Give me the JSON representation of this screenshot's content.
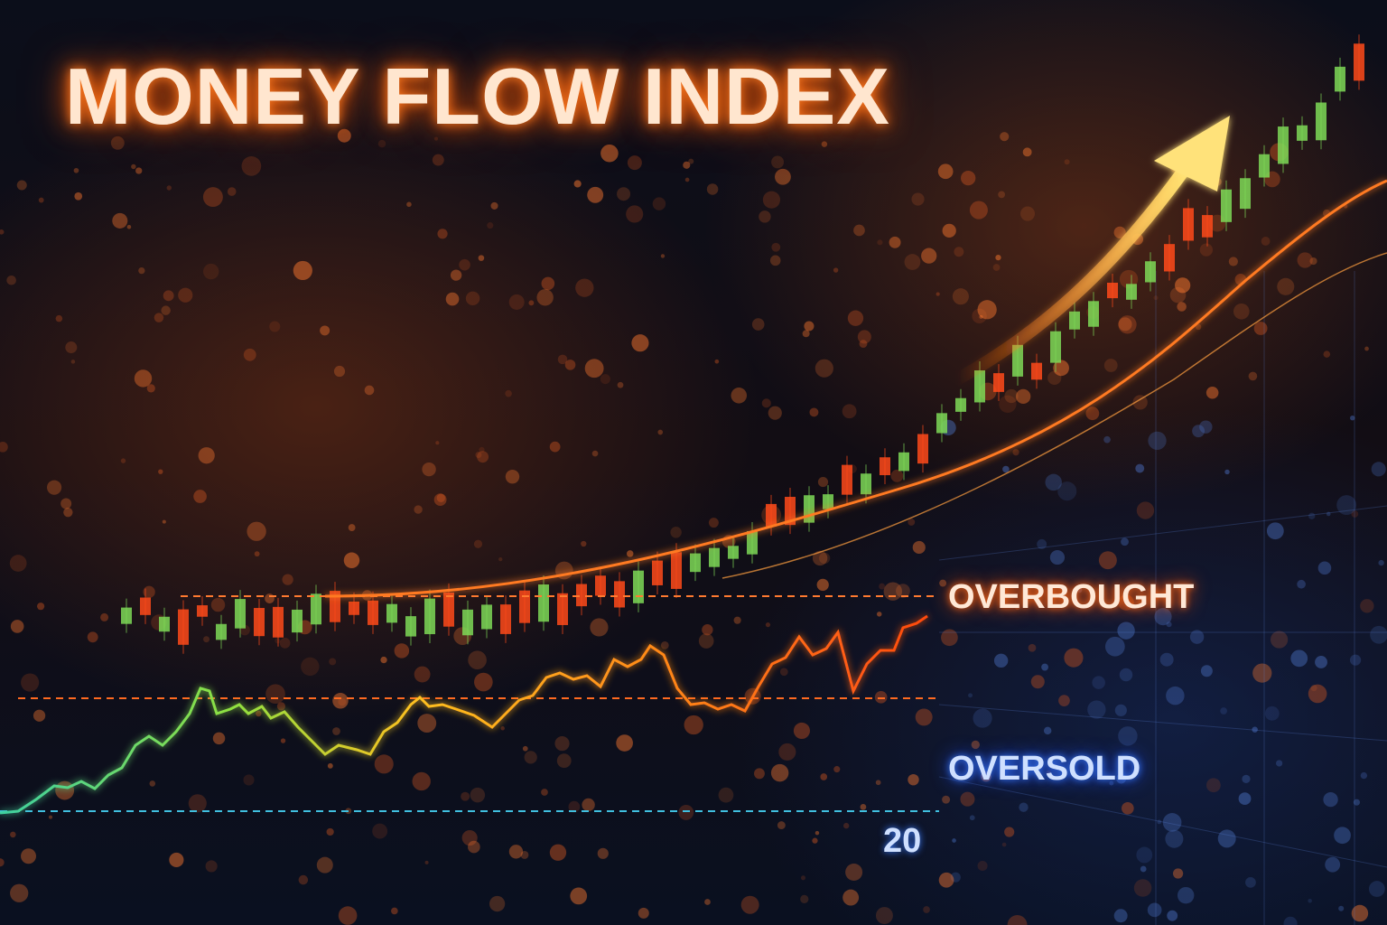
{
  "title": "MONEY FLOW INDEX",
  "labels": {
    "overbought": "OVERBOUGHT",
    "oversold": "OVERSOLD",
    "level_20": "20"
  },
  "colors": {
    "accent_orange": "#ff6a1a",
    "accent_blue": "#3a7bff",
    "candle_up": "#7ed957",
    "candle_down": "#ff4a1a",
    "background": "#0a0d18"
  },
  "icons": {
    "trend": "up-arrow-icon"
  }
}
